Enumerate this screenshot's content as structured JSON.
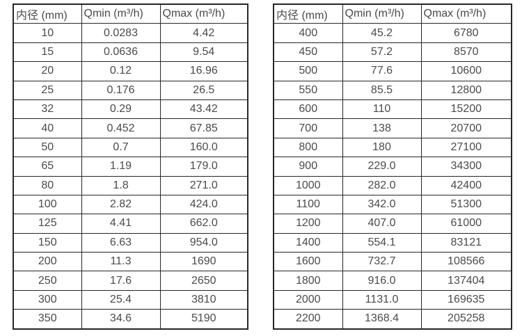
{
  "colors": {
    "background": "#ffffff",
    "border": "#262626",
    "text": "#4a4a4a"
  },
  "tables": [
    {
      "name": "small-diameter-flow-table",
      "headers": [
        "内径 (mm)",
        "Qmin (m³/h)",
        "Qmax (m³/h)"
      ],
      "rows": [
        [
          "10",
          "0.0283",
          "4.42"
        ],
        [
          "15",
          "0.0636",
          "9.54"
        ],
        [
          "20",
          "0.12",
          "16.96"
        ],
        [
          "25",
          "0.176",
          "26.5"
        ],
        [
          "32",
          "0.29",
          "43.42"
        ],
        [
          "40",
          "0.452",
          "67.85"
        ],
        [
          "50",
          "0.7",
          "160.0"
        ],
        [
          "65",
          "1.19",
          "179.0"
        ],
        [
          "80",
          "1.8",
          "271.0"
        ],
        [
          "100",
          "2.82",
          "424.0"
        ],
        [
          "125",
          "4.41",
          "662.0"
        ],
        [
          "150",
          "6.63",
          "954.0"
        ],
        [
          "200",
          "11.3",
          "1690"
        ],
        [
          "250",
          "17.6",
          "2650"
        ],
        [
          "300",
          "25.4",
          "3810"
        ],
        [
          "350",
          "34.6",
          "5190"
        ]
      ]
    },
    {
      "name": "large-diameter-flow-table",
      "headers": [
        "内径 (mm)",
        "Qmin (m³/h)",
        "Qmax (m³/h)"
      ],
      "rows": [
        [
          "400",
          "45.2",
          "6780"
        ],
        [
          "450",
          "57.2",
          "8570"
        ],
        [
          "500",
          "77.6",
          "10600"
        ],
        [
          "550",
          "85.5",
          "12800"
        ],
        [
          "600",
          "110",
          "15200"
        ],
        [
          "700",
          "138",
          "20700"
        ],
        [
          "800",
          "180",
          "27100"
        ],
        [
          "900",
          "229.0",
          "34300"
        ],
        [
          "1000",
          "282.0",
          "42400"
        ],
        [
          "1100",
          "342.0",
          "51300"
        ],
        [
          "1200",
          "407.0",
          "61000"
        ],
        [
          "1400",
          "554.1",
          "83121"
        ],
        [
          "1600",
          "732.7",
          "108566"
        ],
        [
          "1800",
          "916.0",
          "137404"
        ],
        [
          "2000",
          "1131.0",
          "169635"
        ],
        [
          "2200",
          "1368.4",
          "205258"
        ]
      ]
    }
  ]
}
